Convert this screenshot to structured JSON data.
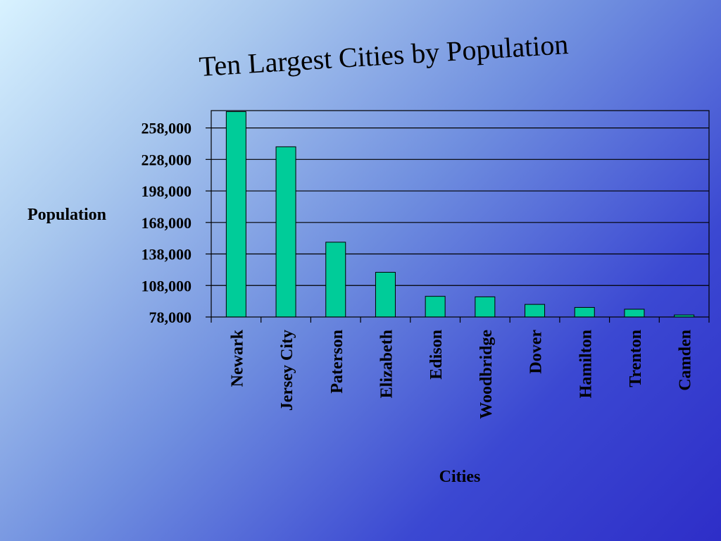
{
  "chart_data": {
    "type": "bar",
    "title": "Ten Largest Cities by Population",
    "xlabel": "Cities",
    "ylabel": "Population",
    "categories": [
      "Newark",
      "Jersey City",
      "Paterson",
      "Elizabeth",
      "Edison",
      "Woodbridge",
      "Dover",
      "Hamilton",
      "Trenton",
      "Camden"
    ],
    "values": [
      273546,
      240055,
      149222,
      120568,
      97687,
      97203,
      90000,
      87109,
      85403,
      79904
    ],
    "yticks": [
      "78,000",
      "108,000",
      "138,000",
      "168,000",
      "198,000",
      "228,000",
      "258,000"
    ],
    "ylim": [
      78000,
      274500
    ],
    "grid": true,
    "bar_color": "#00cc99"
  }
}
